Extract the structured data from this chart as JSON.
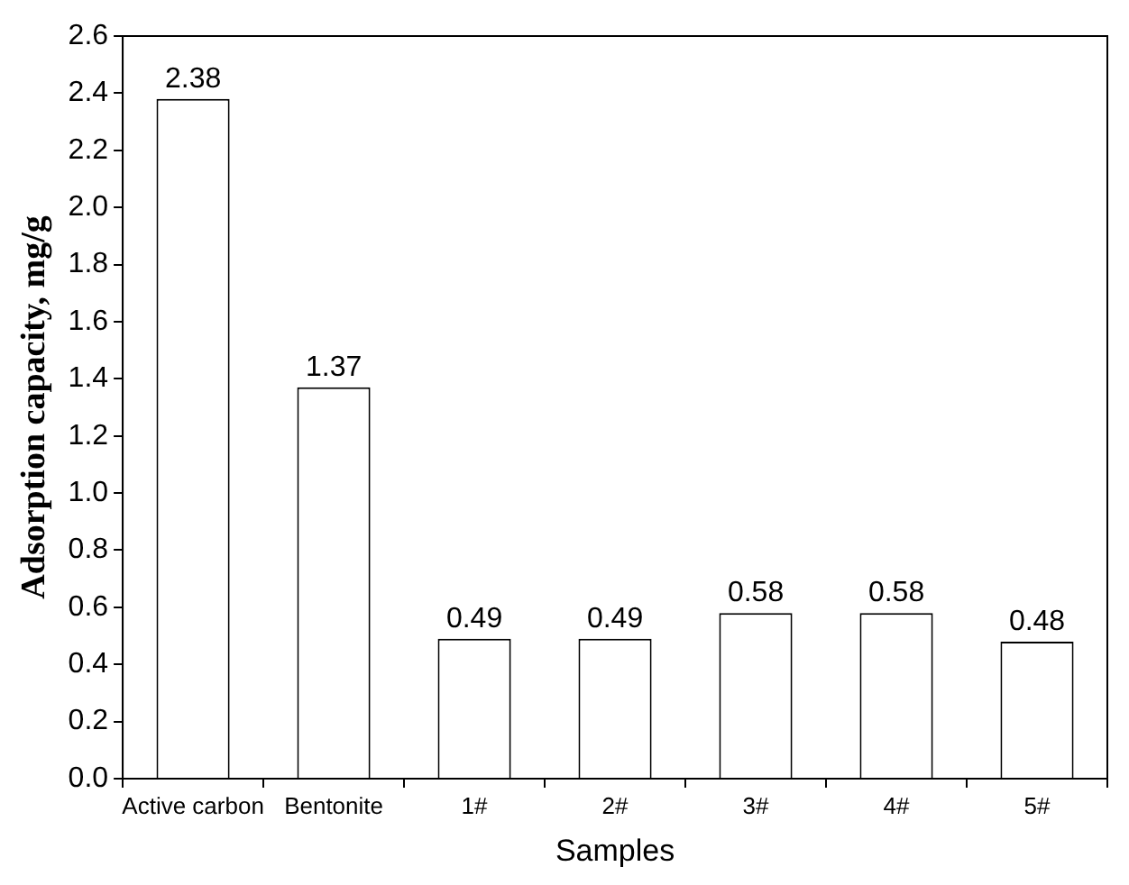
{
  "chart_data": {
    "type": "bar",
    "xlabel": "Samples",
    "ylabel": "Adsorption capacity, mg/g",
    "categories": [
      "Active carbon",
      "Bentonite",
      "1#",
      "2#",
      "3#",
      "4#",
      "5#"
    ],
    "values": [
      2.38,
      1.37,
      0.49,
      0.49,
      0.58,
      0.58,
      0.48
    ],
    "color": "#ffffff",
    "data_labels": true,
    "grid": false,
    "legend": false,
    "ylim": [
      0,
      2.6
    ],
    "yticks": [
      {
        "value": 0,
        "label": "0.0"
      },
      0.2,
      0.4,
      0.6,
      0.8,
      {
        "value": 1,
        "label": "1.0"
      },
      1.2,
      1.4,
      1.6,
      1.8,
      {
        "value": 2,
        "label": "2.0"
      },
      2.2,
      2.4,
      2.6
    ]
  }
}
